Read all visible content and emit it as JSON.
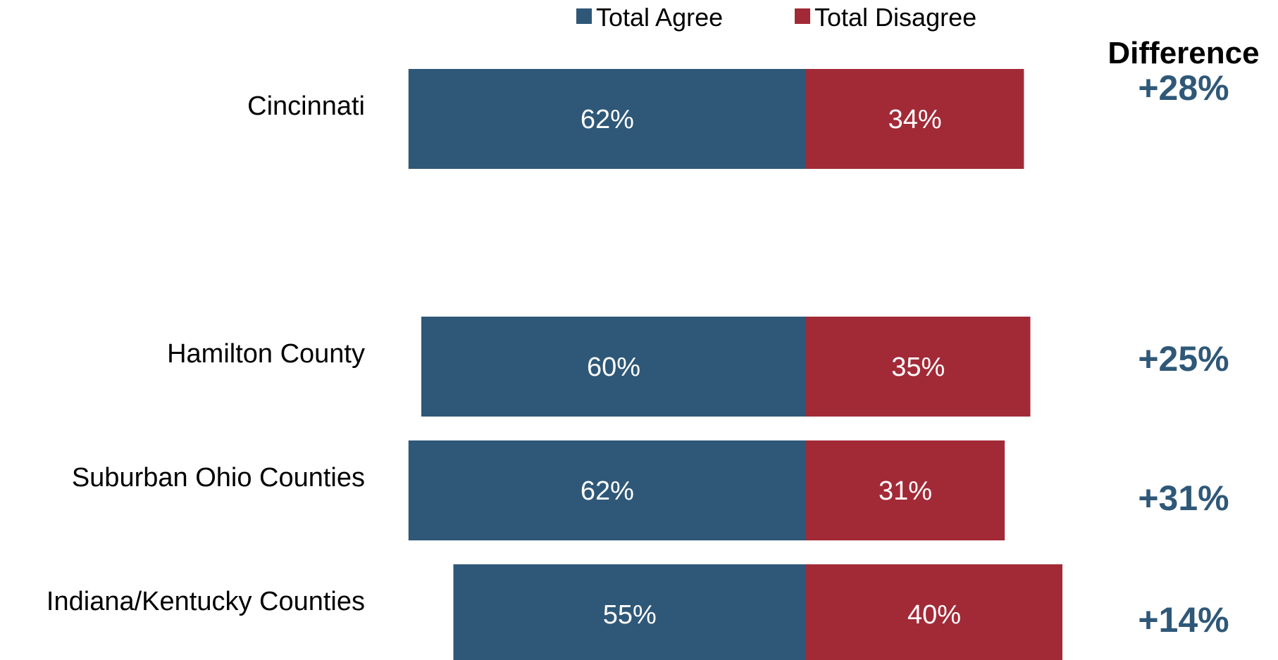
{
  "chart_data": {
    "type": "bar",
    "orientation": "horizontal",
    "stacked": "diverging",
    "categories": [
      "Cincinnati",
      "Hamilton County",
      "Suburban Ohio Counties",
      "Indiana/Kentucky Counties"
    ],
    "series": [
      {
        "name": "Total Agree",
        "values": [
          62,
          60,
          62,
          55
        ],
        "color": "#2f5878"
      },
      {
        "name": "Total Disagree",
        "values": [
          34,
          35,
          31,
          40
        ],
        "color": "#a22a37"
      }
    ],
    "value_suffix": "%",
    "difference": {
      "title": "Difference",
      "values": [
        "+28%",
        "+25%",
        "+31%",
        "+14%"
      ],
      "color": "#2f5878"
    },
    "legend_position": "top",
    "grid": false
  }
}
